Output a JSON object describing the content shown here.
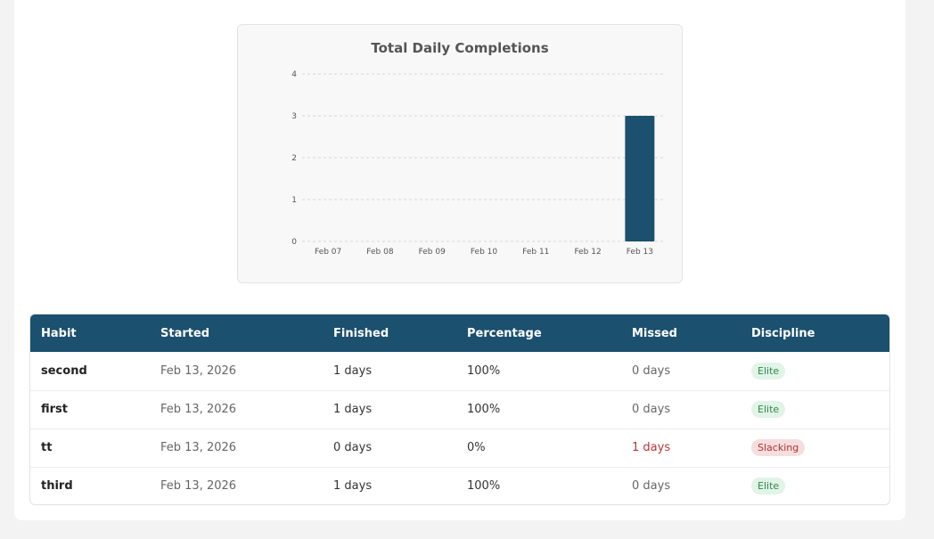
{
  "chart_data": {
    "type": "bar",
    "title": "Total Daily Completions",
    "categories": [
      "Feb 07",
      "Feb 08",
      "Feb 09",
      "Feb 10",
      "Feb 11",
      "Feb 12",
      "Feb 13"
    ],
    "values": [
      0,
      0,
      0,
      0,
      0,
      0,
      3
    ],
    "yticks": [
      0,
      1,
      2,
      3,
      4
    ],
    "ylim": [
      0,
      4
    ],
    "grid": true,
    "bar_color": "#1b506e"
  },
  "table": {
    "headers": [
      "Habit",
      "Started",
      "Finished",
      "Percentage",
      "Missed",
      "Discipline"
    ],
    "rows": [
      {
        "habit": "second",
        "started": "Feb 13, 2026",
        "finished": "1 days",
        "percentage": "100%",
        "missed": "0 days",
        "discipline": "Elite",
        "status": "good"
      },
      {
        "habit": "first",
        "started": "Feb 13, 2026",
        "finished": "1 days",
        "percentage": "100%",
        "missed": "0 days",
        "discipline": "Elite",
        "status": "good"
      },
      {
        "habit": "tt",
        "started": "Feb 13, 2026",
        "finished": "0 days",
        "percentage": "0%",
        "missed": "1 days",
        "discipline": "Slacking",
        "status": "bad"
      },
      {
        "habit": "third",
        "started": "Feb 13, 2026",
        "finished": "1 days",
        "percentage": "100%",
        "missed": "0 days",
        "discipline": "Elite",
        "status": "good"
      }
    ]
  },
  "colors": {
    "header_bg": "#1b506e",
    "elite_bg": "#e2f4e8",
    "elite_text": "#2e8a49",
    "slacking_bg": "#f7dede",
    "slacking_text": "#b03030"
  }
}
